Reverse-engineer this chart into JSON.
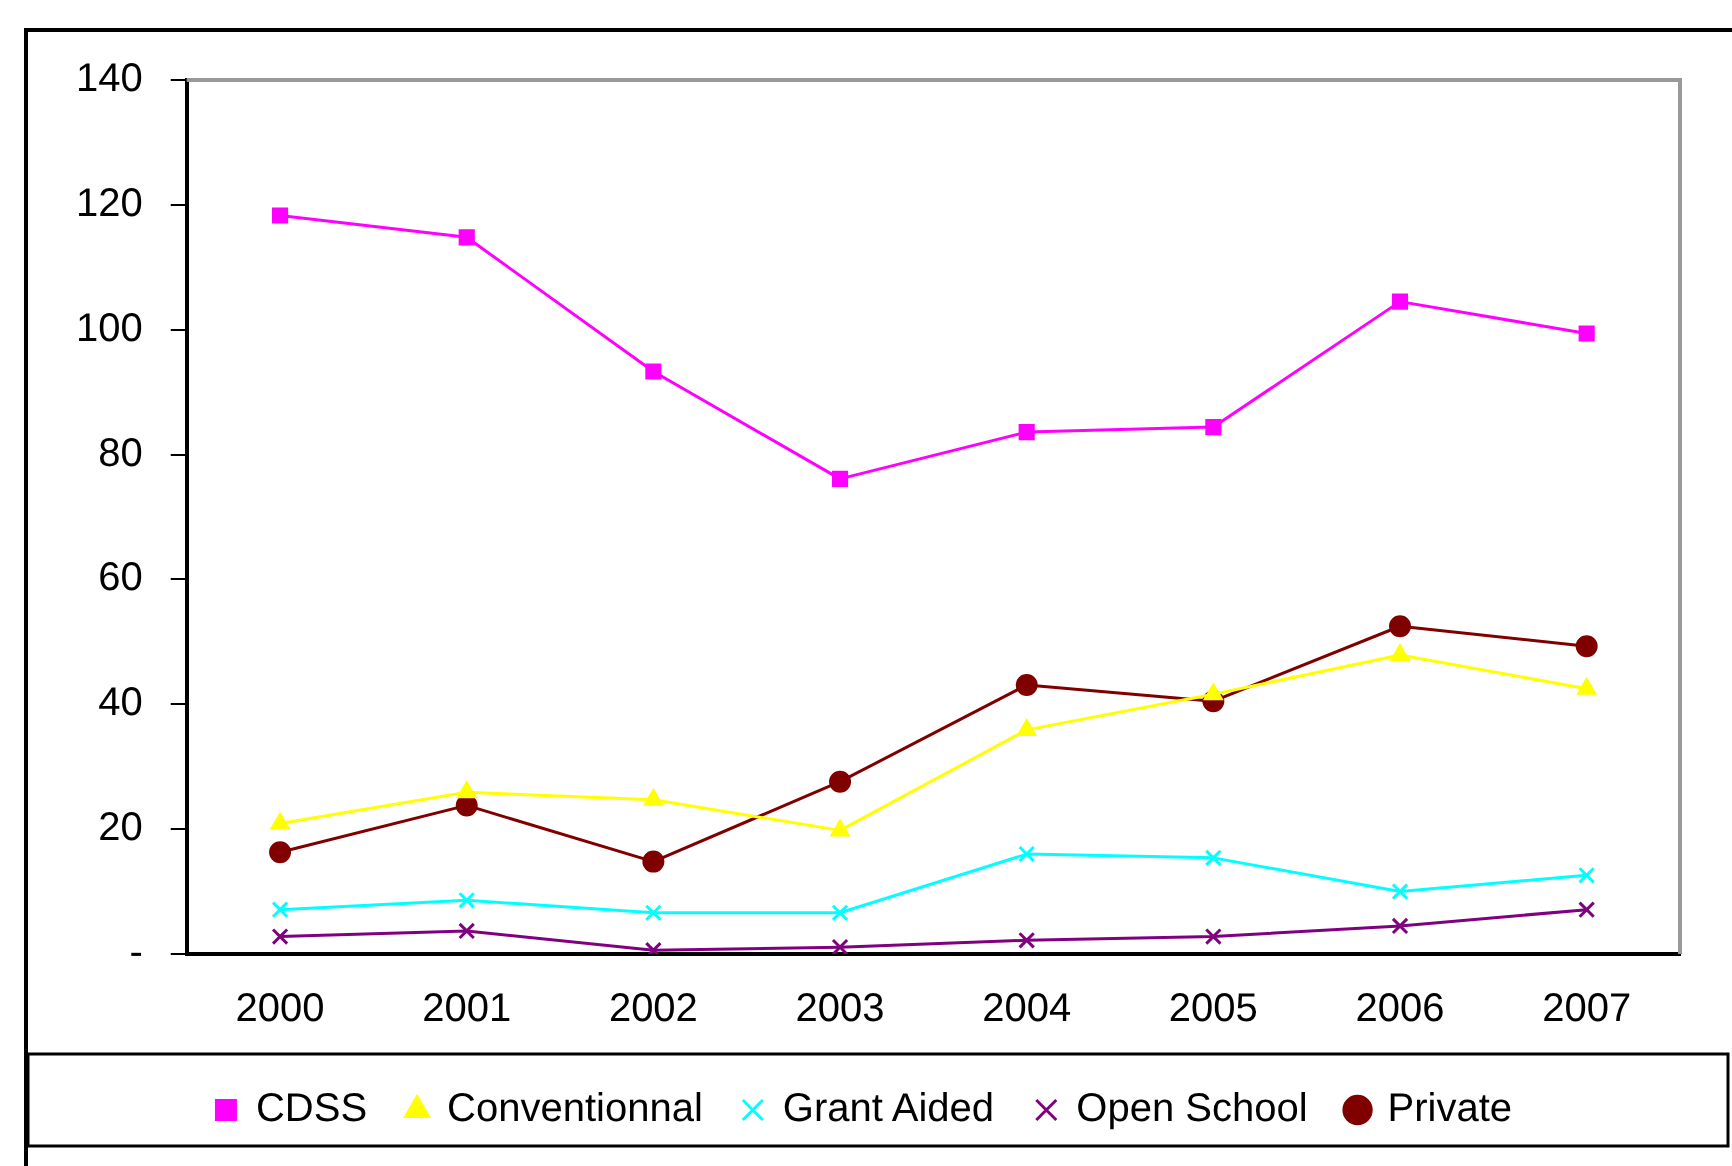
{
  "chart_data": {
    "type": "line",
    "categories": [
      "2000",
      "2001",
      "2002",
      "2003",
      "2004",
      "2005",
      "2006",
      "2007"
    ],
    "series": [
      {
        "name": "CDSS",
        "color": "#ff00ff",
        "marker": "square",
        "values": [
          118.3,
          114.8,
          93.3,
          76.1,
          83.6,
          84.4,
          104.5,
          99.4
        ]
      },
      {
        "name": "Conventionnal",
        "color": "#ffff00",
        "marker": "triangle",
        "values": [
          20.9,
          25.9,
          24.7,
          19.8,
          35.9,
          41.6,
          47.9,
          42.5
        ]
      },
      {
        "name": "Grant Aided",
        "color": "#00ffff",
        "marker": "cross",
        "values": [
          7.1,
          8.6,
          6.6,
          6.6,
          16.0,
          15.4,
          10.0,
          12.6
        ]
      },
      {
        "name": "Open School",
        "color": "#800080",
        "marker": "cross",
        "values": [
          2.8,
          3.7,
          0.6,
          1.1,
          2.2,
          2.8,
          4.5,
          7.1
        ]
      },
      {
        "name": "Private",
        "color": "#800000",
        "marker": "circle",
        "values": [
          16.3,
          23.8,
          14.8,
          27.6,
          43.1,
          40.5,
          52.5,
          49.3
        ]
      }
    ],
    "ylim": [
      0,
      140
    ],
    "yticks": [
      {
        "value": 0,
        "label": "-"
      },
      20,
      40,
      60,
      80,
      100,
      120,
      140
    ],
    "grid": false,
    "legend": "bottom",
    "line_style": "solid"
  }
}
